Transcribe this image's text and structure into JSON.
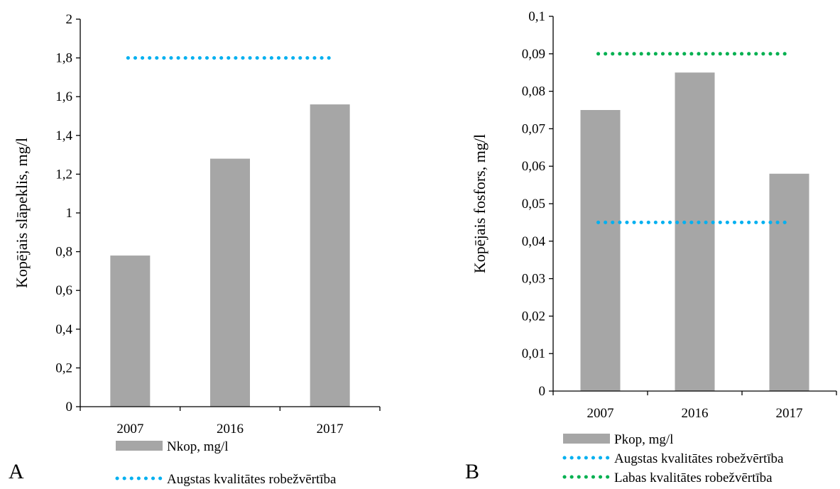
{
  "panels": [
    {
      "panel_label": "A",
      "legend": [
        "Nkop, mg/l",
        "Augstas kvalitātes robežvērtība"
      ]
    },
    {
      "panel_label": "B",
      "legend": [
        "Pkop, mg/l",
        "Augstas kvalitātes robežvērtība",
        "Labas kvalitātes robežvērtība"
      ]
    }
  ],
  "colors": {
    "bar": "#a6a6a6",
    "augstas_line": "#00b0f0",
    "labas_line": "#00b050",
    "axis": "#000000"
  },
  "chart_data": [
    {
      "type": "bar",
      "categories": [
        "2007",
        "2016",
        "2017"
      ],
      "series": [
        {
          "name": "Nkop, mg/l",
          "type": "bar",
          "values": [
            0.78,
            1.28,
            1.56
          ]
        },
        {
          "name": "Augstas kvalitātes robežvērtība",
          "type": "line",
          "style": "dotted",
          "values": [
            1.8,
            1.8,
            1.8
          ]
        }
      ],
      "ylabel": "Kopējais slāpeklis, mg/l",
      "xlabel": "",
      "ylim": [
        0,
        2
      ],
      "ytick_labels": [
        "0",
        "0,2",
        "0,4",
        "0,6",
        "0,8",
        "1",
        "1,2",
        "1,4",
        "1,6",
        "1,8",
        "2"
      ],
      "grid": false,
      "legend_position": "bottom"
    },
    {
      "type": "bar",
      "categories": [
        "2007",
        "2016",
        "2017"
      ],
      "series": [
        {
          "name": "Pkop, mg/l",
          "type": "bar",
          "values": [
            0.075,
            0.085,
            0.058
          ]
        },
        {
          "name": "Augstas kvalitātes robežvērtība",
          "type": "line",
          "style": "dotted",
          "values": [
            0.045,
            0.045,
            0.045
          ]
        },
        {
          "name": "Labas kvalitātes robežvērtība",
          "type": "line",
          "style": "dotted",
          "values": [
            0.09,
            0.09,
            0.09
          ]
        }
      ],
      "ylabel": "Kopējais fosfors, mg/l",
      "xlabel": "",
      "ylim": [
        0,
        0.1
      ],
      "ytick_labels": [
        "0",
        "0,01",
        "0,02",
        "0,03",
        "0,04",
        "0,05",
        "0,06",
        "0,07",
        "0,08",
        "0,09",
        "0,1"
      ],
      "grid": false,
      "legend_position": "bottom"
    }
  ]
}
